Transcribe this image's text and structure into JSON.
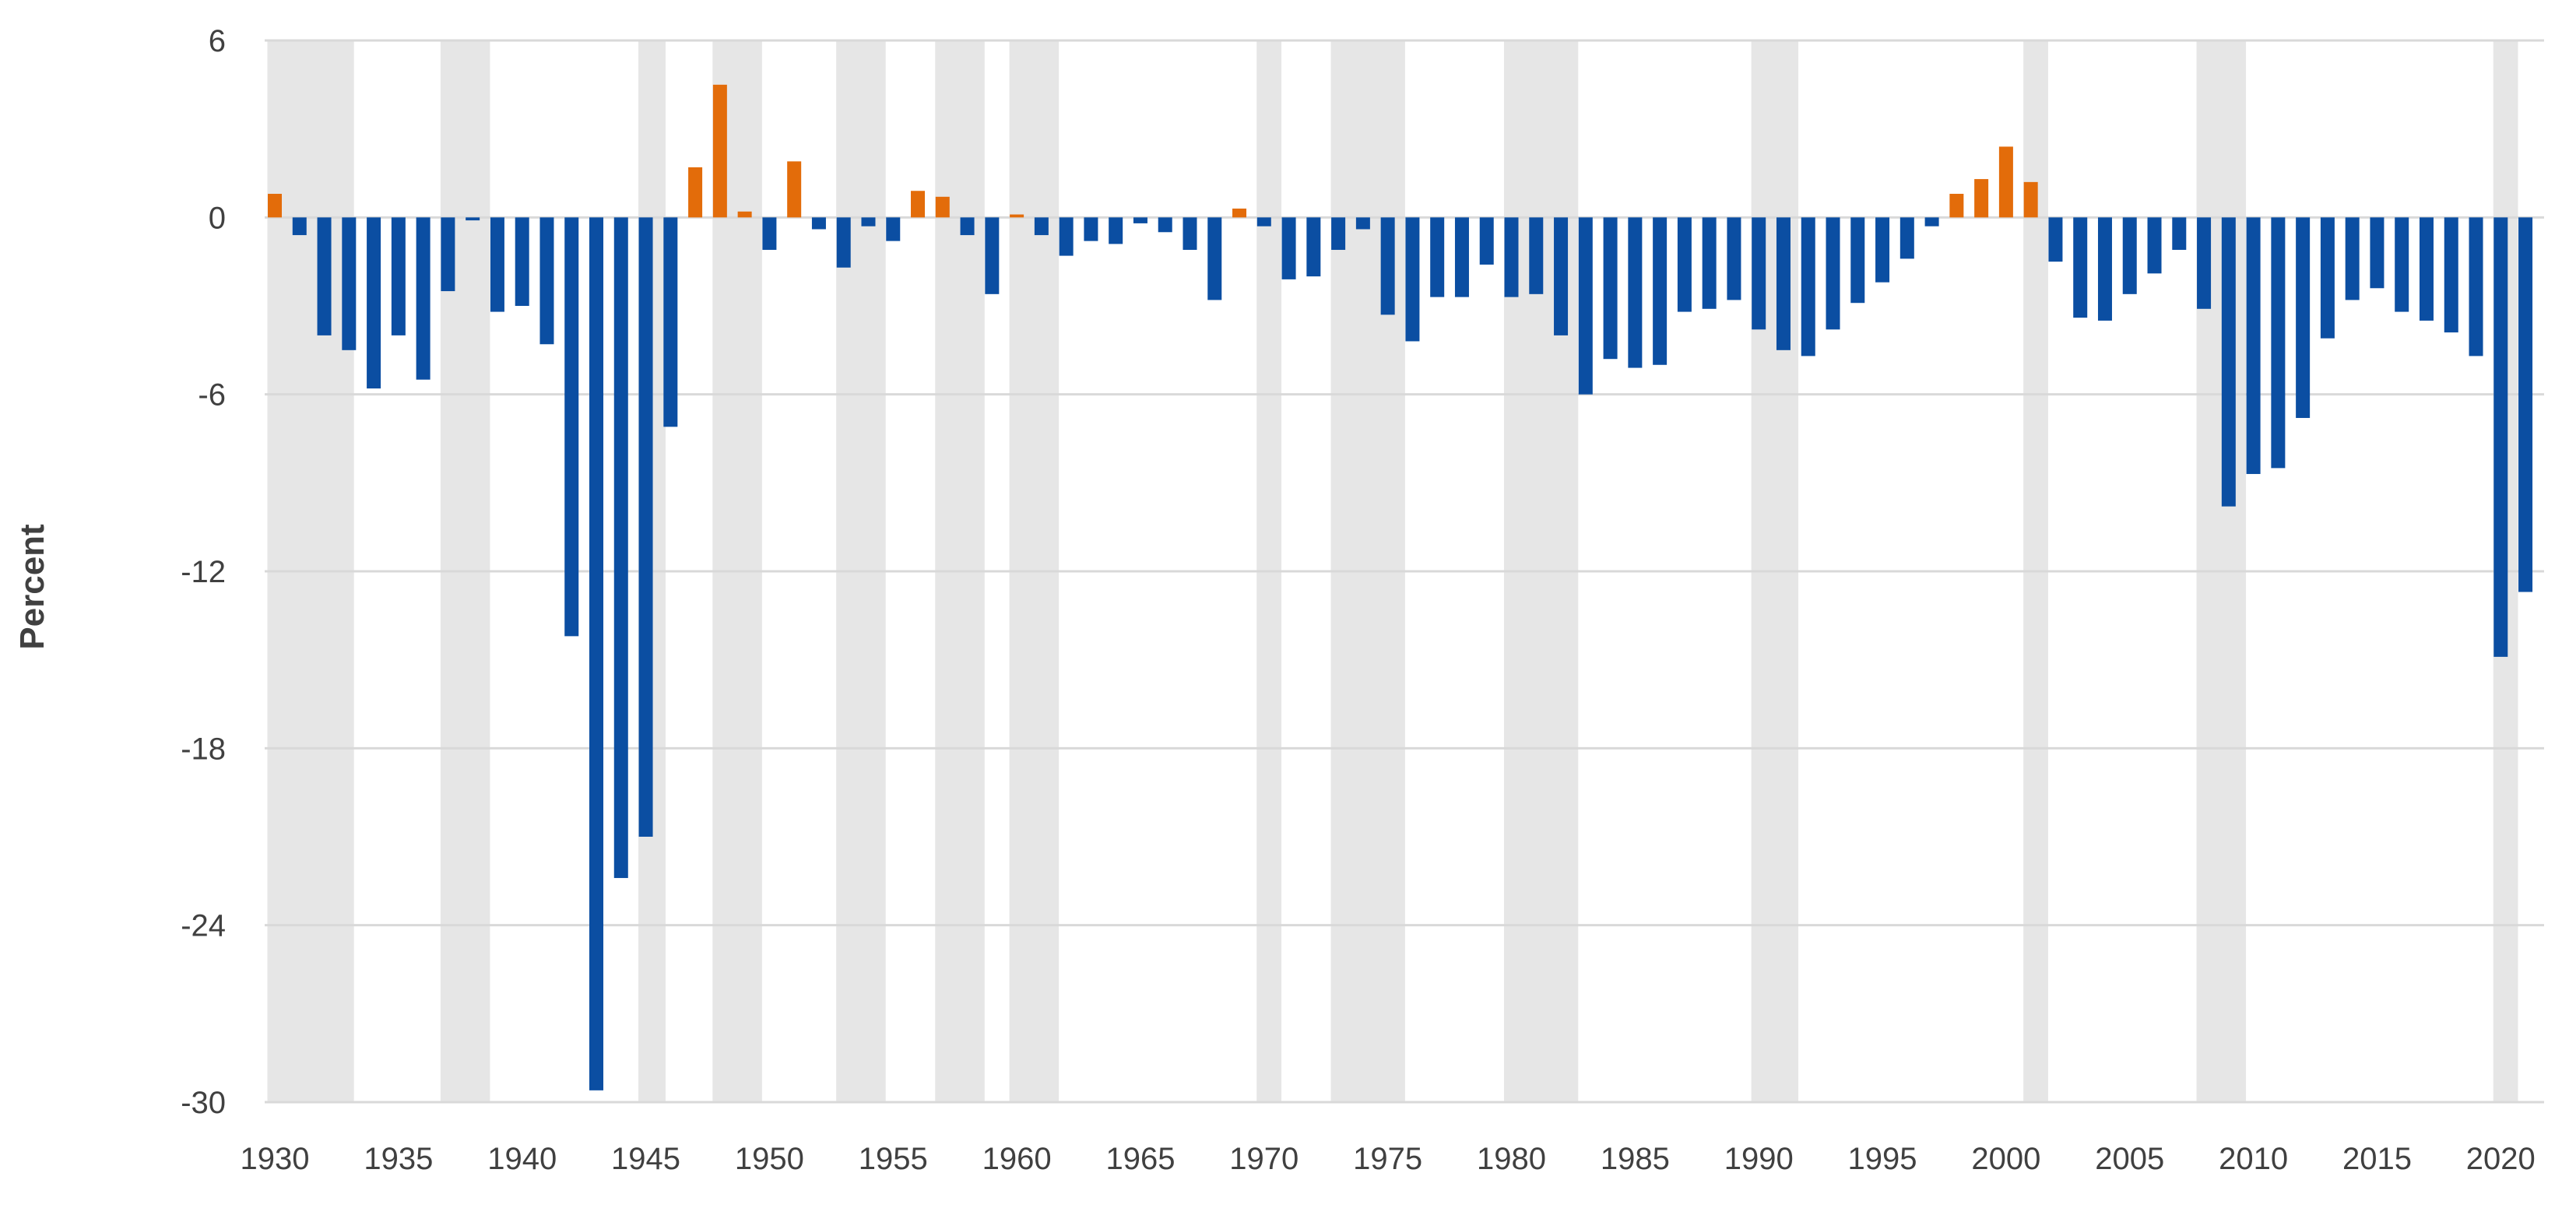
{
  "chart_data": {
    "type": "bar",
    "title": "",
    "xlabel": "",
    "ylabel": "Percent",
    "ylim": [
      -30,
      6
    ],
    "yticks": [
      6,
      0,
      -6,
      -12,
      -18,
      -24,
      -30
    ],
    "xticks": [
      1930,
      1935,
      1940,
      1945,
      1950,
      1955,
      1960,
      1965,
      1970,
      1975,
      1980,
      1985,
      1990,
      1995,
      2000,
      2005,
      2010,
      2015,
      2020
    ],
    "x_range": [
      1930,
      2021
    ],
    "grid": true,
    "legend": "none",
    "colors": {
      "surplus": "#E36C0A",
      "deficit": "#0B4EA2",
      "recession": "#E6E6E6",
      "grid": "#D9D9D9",
      "text": "#404040"
    },
    "recessions": [
      [
        1929.7,
        1933.2
      ],
      [
        1936.7,
        1938.7
      ],
      [
        1944.7,
        1945.8
      ],
      [
        1947.7,
        1949.7
      ],
      [
        1952.7,
        1954.7
      ],
      [
        1956.7,
        1958.7
      ],
      [
        1959.7,
        1961.7
      ],
      [
        1969.7,
        1970.7
      ],
      [
        1972.7,
        1975.7
      ],
      [
        1979.7,
        1982.7
      ],
      [
        1989.7,
        1991.6
      ],
      [
        2000.7,
        2001.7
      ],
      [
        2007.7,
        2009.7
      ],
      [
        2019.7,
        2020.7
      ]
    ],
    "years": [
      1930,
      1931,
      1932,
      1933,
      1934,
      1935,
      1936,
      1937,
      1938,
      1939,
      1940,
      1941,
      1942,
      1943,
      1944,
      1945,
      1946,
      1947,
      1948,
      1949,
      1950,
      1951,
      1952,
      1953,
      1954,
      1955,
      1956,
      1957,
      1958,
      1959,
      1960,
      1961,
      1962,
      1963,
      1964,
      1965,
      1966,
      1967,
      1968,
      1969,
      1970,
      1971,
      1972,
      1973,
      1974,
      1975,
      1976,
      1977,
      1978,
      1979,
      1980,
      1981,
      1982,
      1983,
      1984,
      1985,
      1986,
      1987,
      1988,
      1989,
      1990,
      1991,
      1992,
      1993,
      1994,
      1995,
      1996,
      1997,
      1998,
      1999,
      2000,
      2001,
      2002,
      2003,
      2004,
      2005,
      2006,
      2007,
      2008,
      2009,
      2010,
      2011,
      2012,
      2013,
      2014,
      2015,
      2016,
      2017,
      2018,
      2019,
      2020,
      2021
    ],
    "values": [
      0.8,
      -0.6,
      -4.0,
      -4.5,
      -5.8,
      -4.0,
      -5.5,
      -2.5,
      -0.1,
      -3.2,
      -3.0,
      -4.3,
      -14.2,
      -29.6,
      -22.4,
      -21.0,
      -7.1,
      1.7,
      4.5,
      0.2,
      -1.1,
      1.9,
      -0.4,
      -1.7,
      -0.3,
      -0.8,
      0.9,
      0.7,
      -0.6,
      -2.6,
      0.1,
      -0.6,
      -1.3,
      -0.8,
      -0.9,
      -0.2,
      -0.5,
      -1.1,
      -2.8,
      0.3,
      -0.3,
      -2.1,
      -2.0,
      -1.1,
      -0.4,
      -3.3,
      -4.2,
      -2.7,
      -2.7,
      -1.6,
      -2.7,
      -2.6,
      -4.0,
      -6.0,
      -4.8,
      -5.1,
      -5.0,
      -3.2,
      -3.1,
      -2.8,
      -3.8,
      -4.5,
      -4.7,
      -3.8,
      -2.9,
      -2.2,
      -1.4,
      -0.3,
      0.8,
      1.3,
      2.4,
      1.2,
      -1.5,
      -3.4,
      -3.5,
      -2.6,
      -1.9,
      -1.1,
      -3.1,
      -9.8,
      -8.7,
      -8.5,
      -6.8,
      -4.1,
      -2.8,
      -2.4,
      -3.2,
      -3.5,
      -3.9,
      -4.7,
      -14.9,
      -12.7
    ]
  }
}
